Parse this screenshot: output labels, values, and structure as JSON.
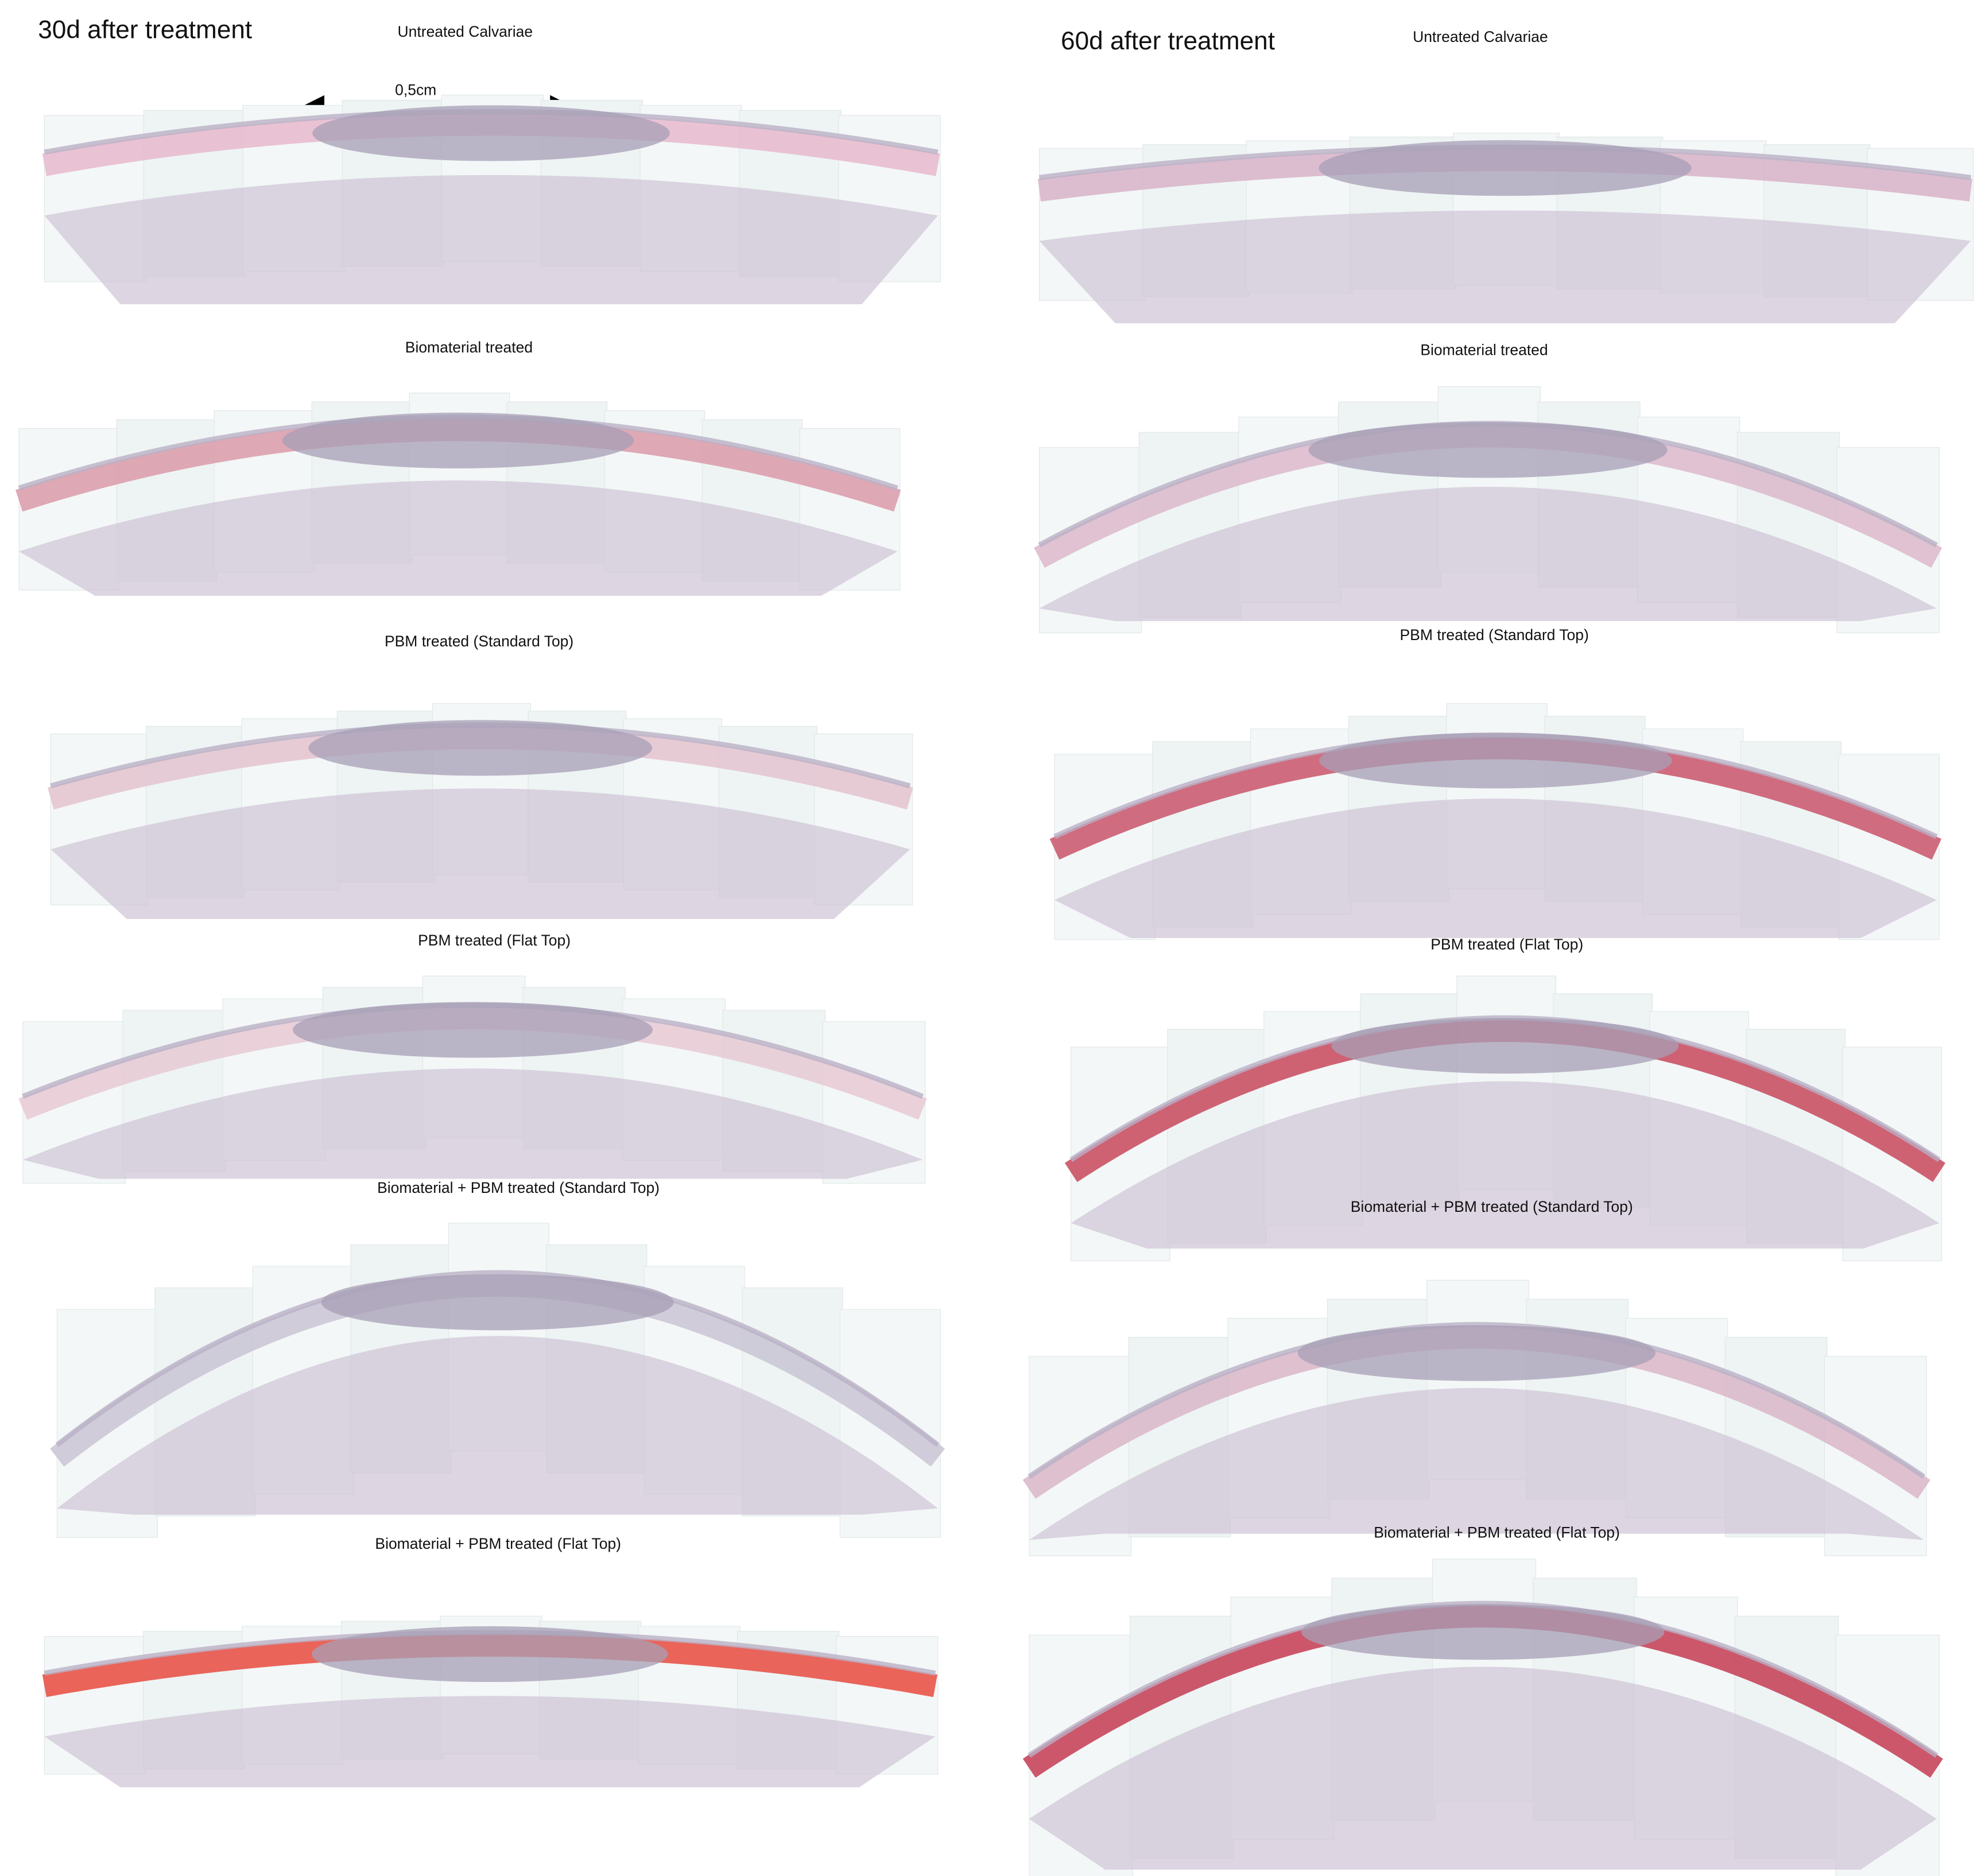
{
  "columns": [
    {
      "title": "30d after treatment",
      "scale_bar": "0,5cm",
      "panels": [
        {
          "label": "Untreated Calvariae"
        },
        {
          "label": "Biomaterial treated"
        },
        {
          "label": "PBM treated (Standard Top)"
        },
        {
          "label": "PBM treated (Flat Top)"
        },
        {
          "label": "Biomaterial + PBM treated (Standard Top)"
        },
        {
          "label": "Biomaterial + PBM treated (Flat Top)"
        }
      ]
    },
    {
      "title": "60d after treatment",
      "panels": [
        {
          "label": "Untreated Calvariae"
        },
        {
          "label": "Biomaterial treated"
        },
        {
          "label": "PBM treated (Standard Top)"
        },
        {
          "label": "PBM treated (Flat Top)"
        },
        {
          "label": "Biomaterial + PBM treated (Standard Top)"
        },
        {
          "label": "Biomaterial + PBM treated (Flat Top)"
        }
      ]
    }
  ]
}
